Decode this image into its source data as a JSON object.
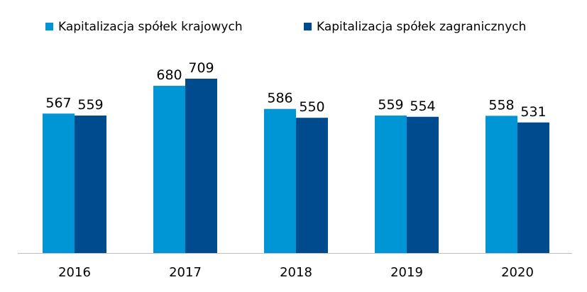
{
  "chart_data": {
    "type": "bar",
    "title": "",
    "xlabel": "",
    "ylabel": "",
    "categories": [
      "2016",
      "2017",
      "2018",
      "2019",
      "2020"
    ],
    "series": [
      {
        "name": "Kapitalizacja spółek krajowych",
        "values": [
          567,
          680,
          586,
          559,
          558
        ],
        "color": "#0096d6"
      },
      {
        "name": "Kapitalizacja spółek zagranicznych",
        "values": [
          559,
          709,
          550,
          554,
          531
        ],
        "color": "#004b8d"
      }
    ],
    "ylim": [
      0,
      709
    ],
    "grid": false,
    "legend_position": "top",
    "data_labels": true,
    "axis_color": "#bfbfbf"
  }
}
